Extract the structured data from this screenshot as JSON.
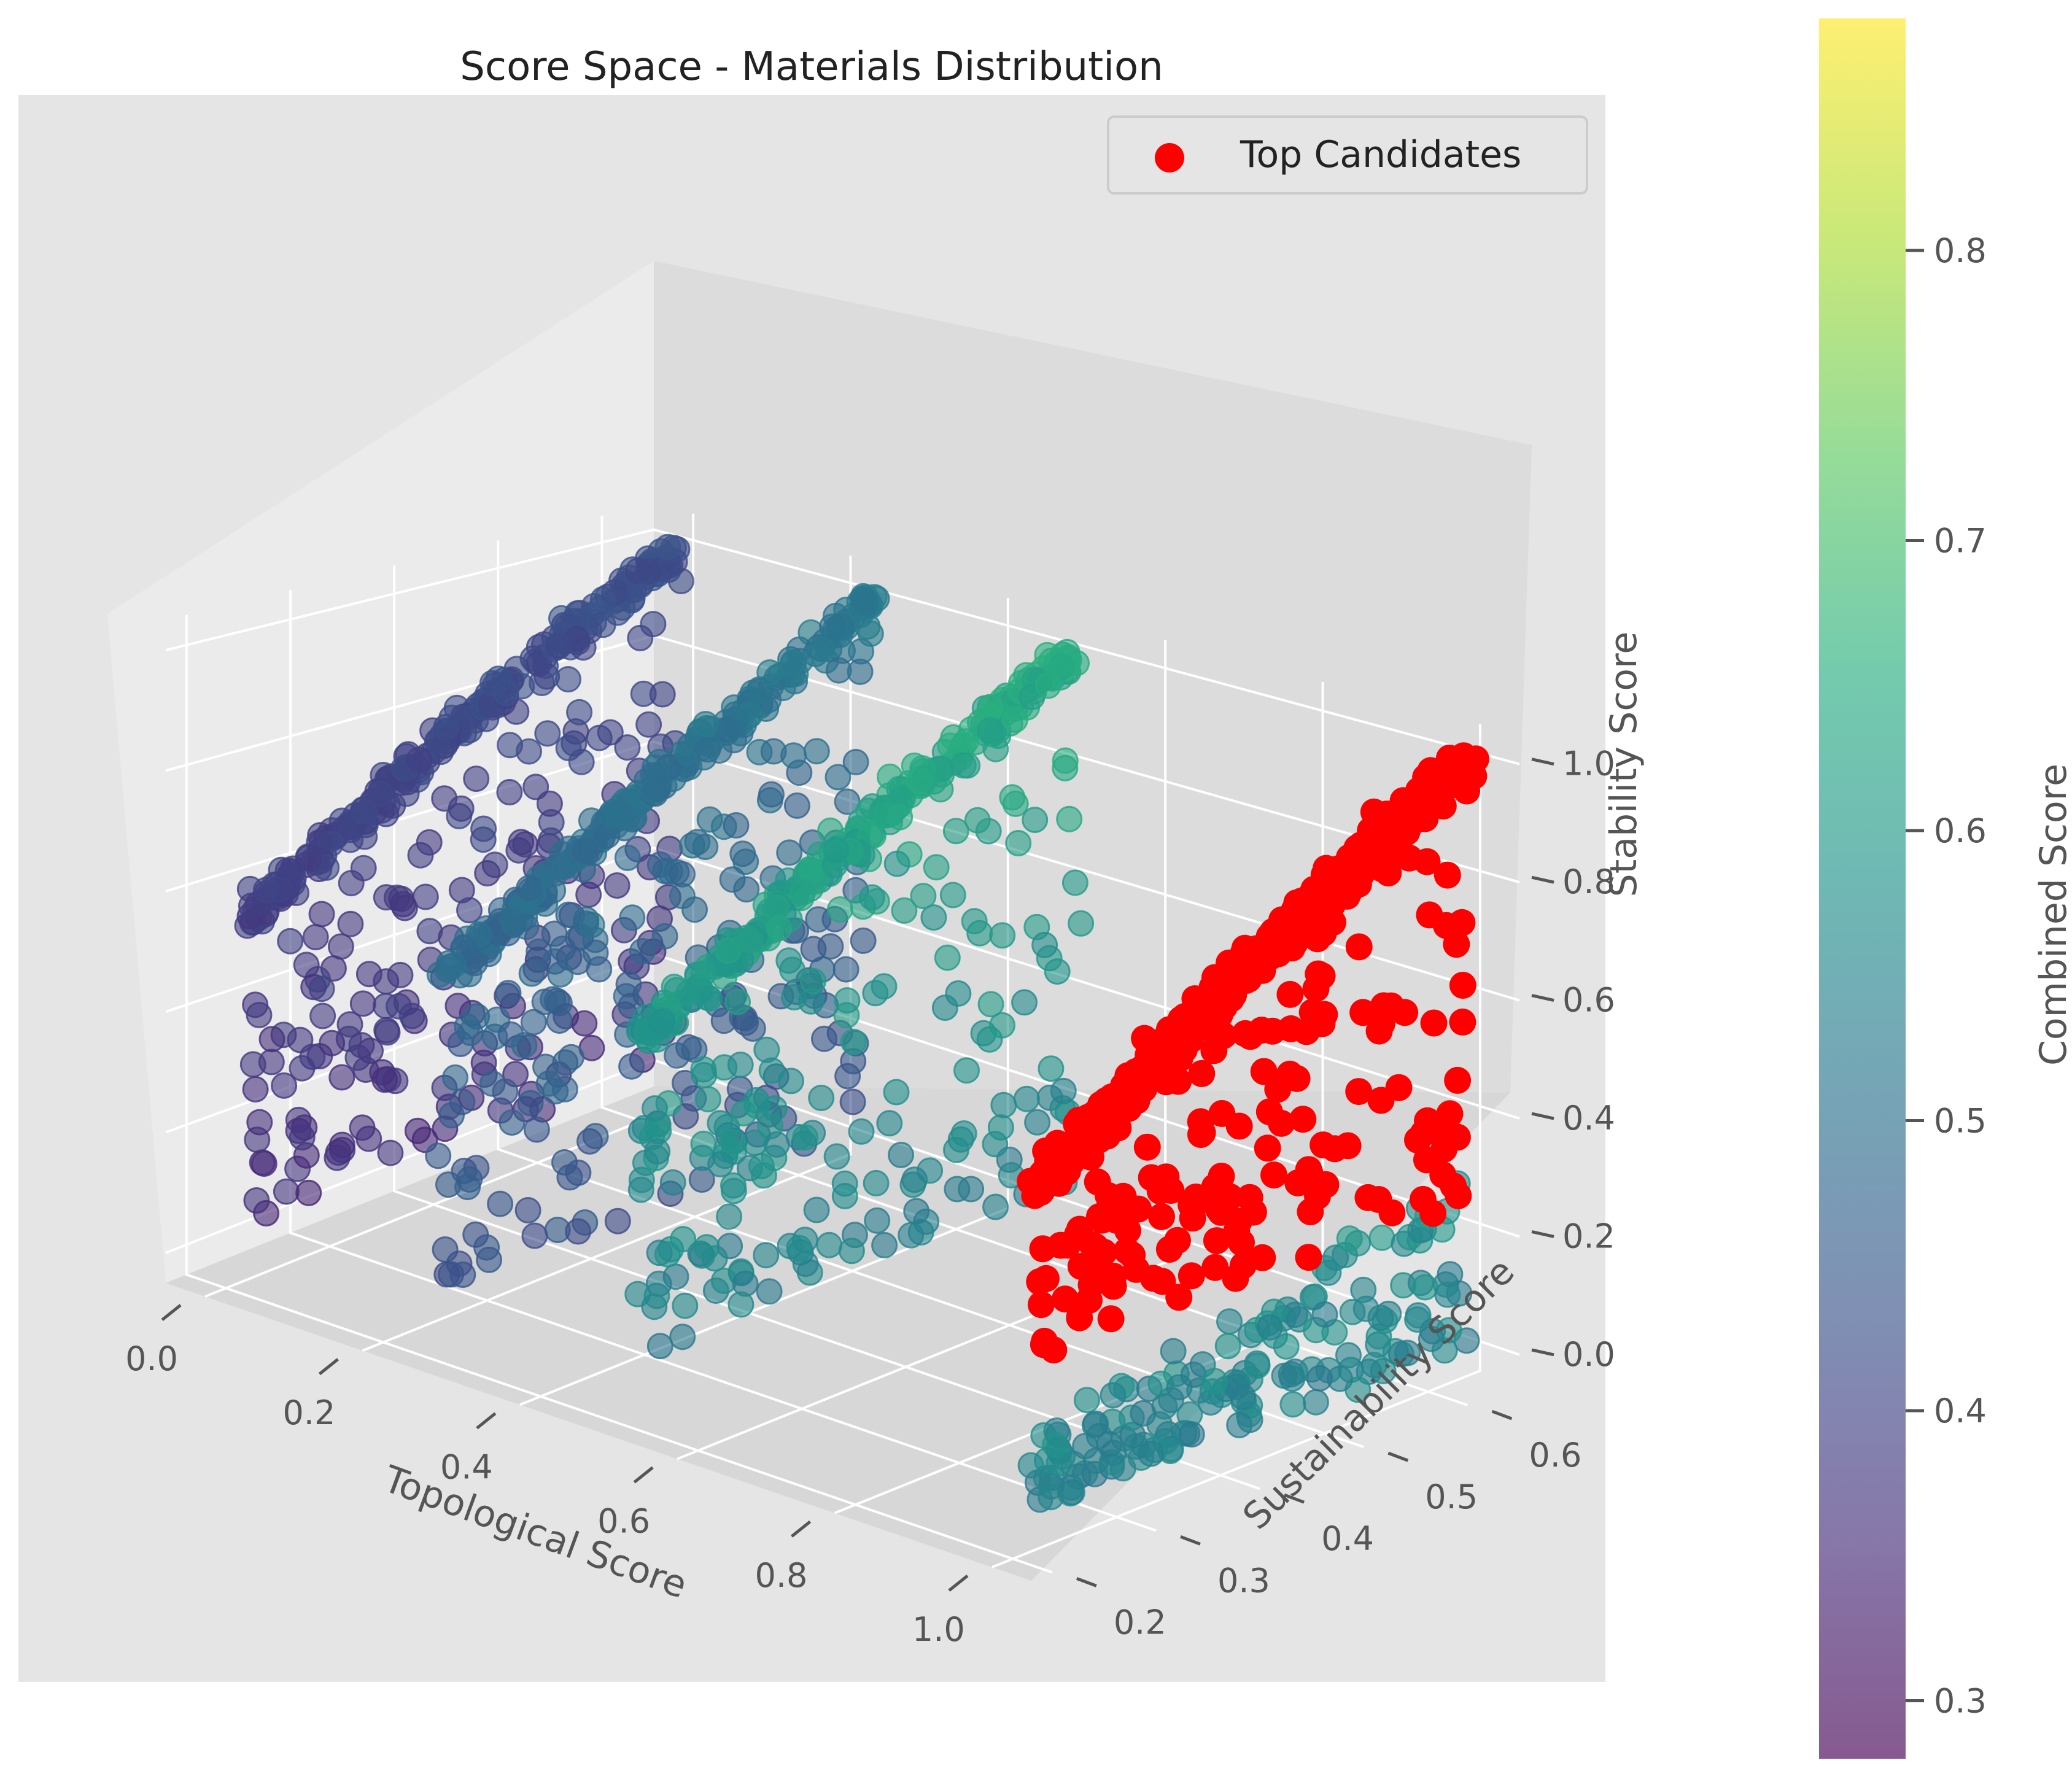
{
  "chart_data": {
    "type": "scatter",
    "projection": "3d",
    "title": "Score Space - Materials Distribution",
    "xlabel": "Topological Score",
    "ylabel": "Sustainability Score",
    "zlabel": "Stability Score",
    "xlim": [
      -0.05,
      1.05
    ],
    "ylim": [
      0.18,
      0.65
    ],
    "zlim": [
      -0.05,
      1.05
    ],
    "x_ticks": [
      "0.0",
      "0.2",
      "0.4",
      "0.6",
      "0.8",
      "1.0"
    ],
    "y_ticks": [
      "0.2",
      "0.3",
      "0.4",
      "0.5",
      "0.6"
    ],
    "z_ticks": [
      "0.0",
      "0.2",
      "0.4",
      "0.6",
      "0.8",
      "1.0"
    ],
    "grid": true,
    "legend": {
      "position": "upper-right",
      "entries": [
        "Top Candidates"
      ]
    },
    "colorbar": {
      "label": "Combined Score",
      "range": [
        0.28,
        0.88
      ],
      "colormap": "viridis",
      "ticks": [
        "0.3",
        "0.4",
        "0.5",
        "0.6",
        "0.7",
        "0.8"
      ]
    },
    "series": [
      {
        "name": "",
        "colored_by": "Combined Score",
        "clusters": [
          {
            "x": 0.0,
            "y_range": [
              0.22,
              0.64
            ],
            "z_range": [
              0.05,
              1.0
            ],
            "color_range": [
              0.33,
              0.45
            ]
          },
          {
            "x": 0.25,
            "y_range": [
              0.22,
              0.64
            ],
            "z_range": [
              0.05,
              1.0
            ],
            "color_range": [
              0.4,
              0.55
            ]
          },
          {
            "x": 0.5,
            "y_range": [
              0.22,
              0.64
            ],
            "z_range": [
              0.05,
              1.0
            ],
            "color_range": [
              0.5,
              0.68
            ]
          },
          {
            "x": 1.0,
            "y_range": [
              0.22,
              0.64
            ],
            "z_range": [
              0.0,
              0.3
            ],
            "color_range": [
              0.5,
              0.72
            ]
          }
        ]
      },
      {
        "name": "Top Candidates",
        "color": "#ff0000",
        "clusters": [
          {
            "x": 1.0,
            "y_range": [
              0.22,
              0.64
            ],
            "z_range": [
              0.25,
              1.0
            ]
          }
        ]
      }
    ]
  }
}
